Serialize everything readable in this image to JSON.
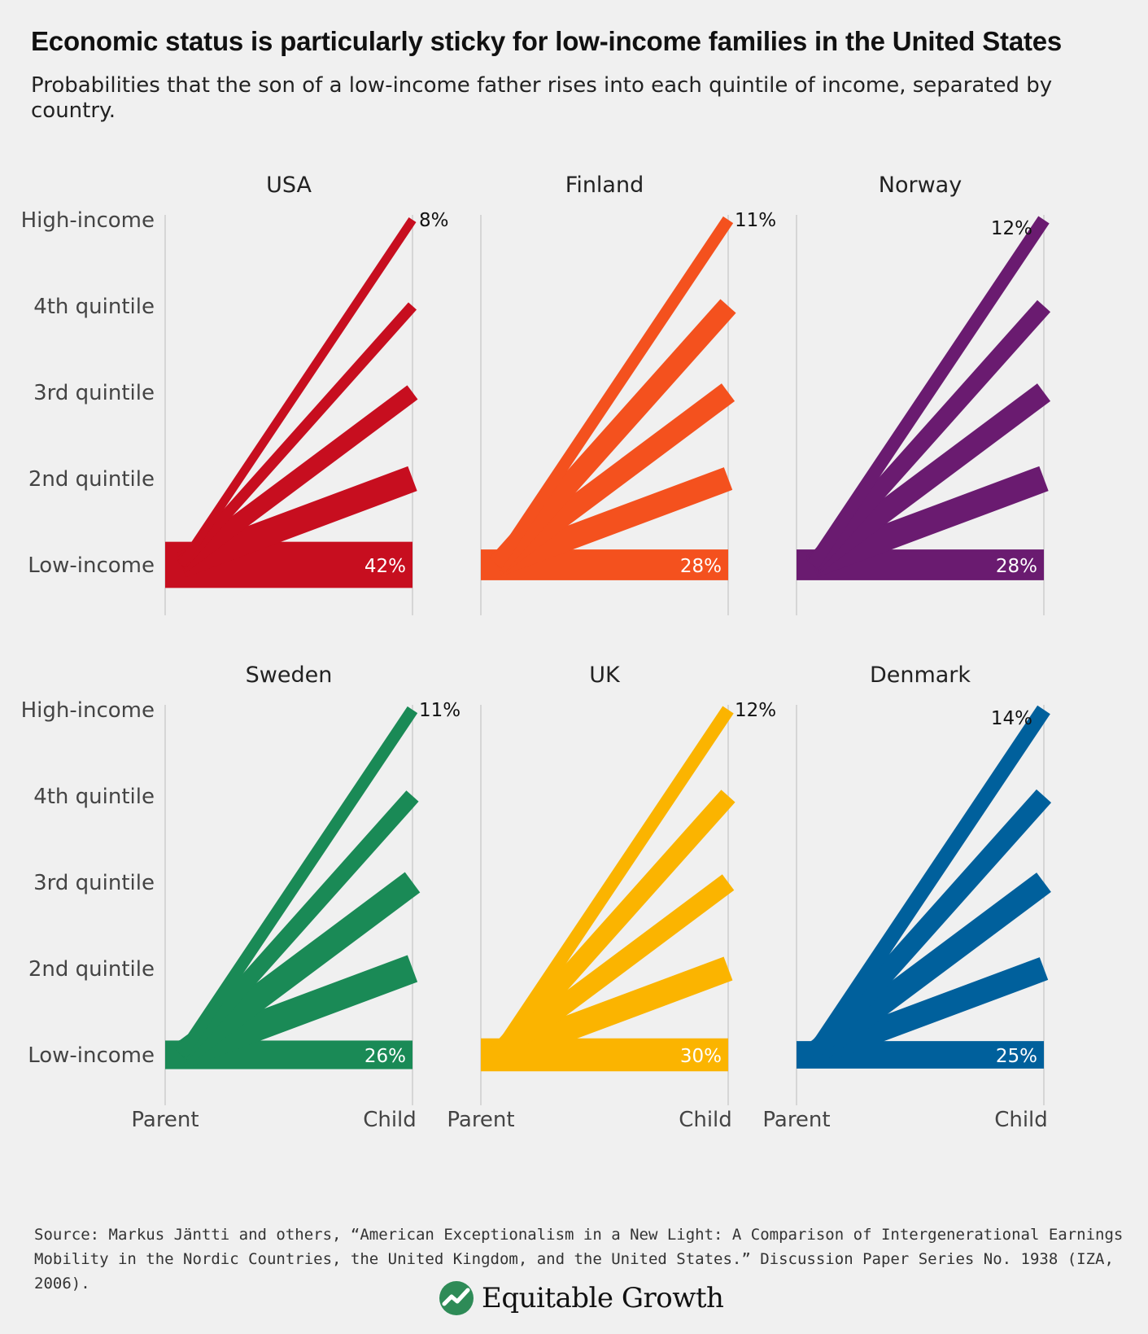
{
  "title": "Economic status is particularly sticky for low-income families in the United States",
  "subtitle": "Probabilities that the son of a low-income father rises into each quintile of income, separated by country.",
  "source": "Source: Markus Jäntti and others, “American Exceptionalism in a New Light: A Comparison of Intergenerational Earnings Mobility in the Nordic Countries, the United Kingdom, and the United States.” Discussion Paper Series No. 1938 (IZA, 2006).",
  "logo": {
    "text": "Equitable Growth",
    "icon": "growth-chart-icon",
    "color": "#2e8b57"
  },
  "chart_data": {
    "type": "line",
    "y_categories": [
      "Low-income",
      "2nd quintile",
      "3rd quintile",
      "4th quintile",
      "High-income"
    ],
    "x_categories": [
      "Parent",
      "Child"
    ],
    "panels": [
      {
        "name": "USA",
        "color": "#c70e1f",
        "labels": {
          "low": "42%",
          "high": "8%"
        },
        "values": [
          42,
          24,
          16,
          10,
          8
        ]
      },
      {
        "name": "Finland",
        "color": "#f4511e",
        "labels": {
          "low": "28%",
          "high": "11%"
        },
        "values": [
          28,
          22,
          20,
          19,
          11
        ]
      },
      {
        "name": "Norway",
        "color": "#6a1b70",
        "labels": {
          "low": "28%",
          "high": "12%"
        },
        "values": [
          28,
          24,
          20,
          16,
          12
        ]
      },
      {
        "name": "Sweden",
        "color": "#1a8a56",
        "labels": {
          "low": "26%",
          "high": "11%"
        },
        "values": [
          26,
          26,
          23,
          15,
          11
        ]
      },
      {
        "name": "UK",
        "color": "#fbb400",
        "labels": {
          "low": "30%",
          "high": "12%"
        },
        "values": [
          30,
          23,
          18,
          17,
          12
        ]
      },
      {
        "name": "Denmark",
        "color": "#00609c",
        "labels": {
          "low": "25%",
          "high": "14%"
        },
        "values": [
          25,
          22,
          22,
          18,
          14
        ]
      }
    ]
  }
}
